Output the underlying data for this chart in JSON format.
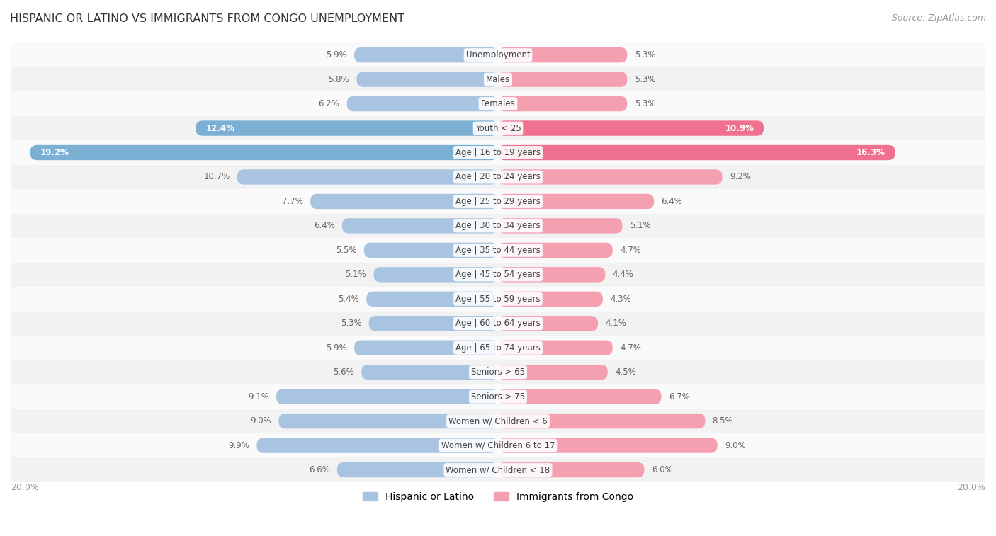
{
  "title": "HISPANIC OR LATINO VS IMMIGRANTS FROM CONGO UNEMPLOYMENT",
  "source": "Source: ZipAtlas.com",
  "categories": [
    "Unemployment",
    "Males",
    "Females",
    "Youth < 25",
    "Age | 16 to 19 years",
    "Age | 20 to 24 years",
    "Age | 25 to 29 years",
    "Age | 30 to 34 years",
    "Age | 35 to 44 years",
    "Age | 45 to 54 years",
    "Age | 55 to 59 years",
    "Age | 60 to 64 years",
    "Age | 65 to 74 years",
    "Seniors > 65",
    "Seniors > 75",
    "Women w/ Children < 6",
    "Women w/ Children 6 to 17",
    "Women w/ Children < 18"
  ],
  "hispanic_values": [
    5.9,
    5.8,
    6.2,
    12.4,
    19.2,
    10.7,
    7.7,
    6.4,
    5.5,
    5.1,
    5.4,
    5.3,
    5.9,
    5.6,
    9.1,
    9.0,
    9.9,
    6.6
  ],
  "congo_values": [
    5.3,
    5.3,
    5.3,
    10.9,
    16.3,
    9.2,
    6.4,
    5.1,
    4.7,
    4.4,
    4.3,
    4.1,
    4.7,
    4.5,
    6.7,
    8.5,
    9.0,
    6.0
  ],
  "max_value": 20.0,
  "hispanic_color": "#a8c4e0",
  "congo_color": "#f4a0b0",
  "row_bg_even": "#f2f2f2",
  "row_bg_odd": "#fafafa",
  "label_color": "#555555",
  "title_color": "#333333",
  "highlight_hispanic_color": "#7bafd4",
  "highlight_congo_color": "#f07090",
  "axis_label_color": "#999999",
  "highlight_threshold": 12.0
}
